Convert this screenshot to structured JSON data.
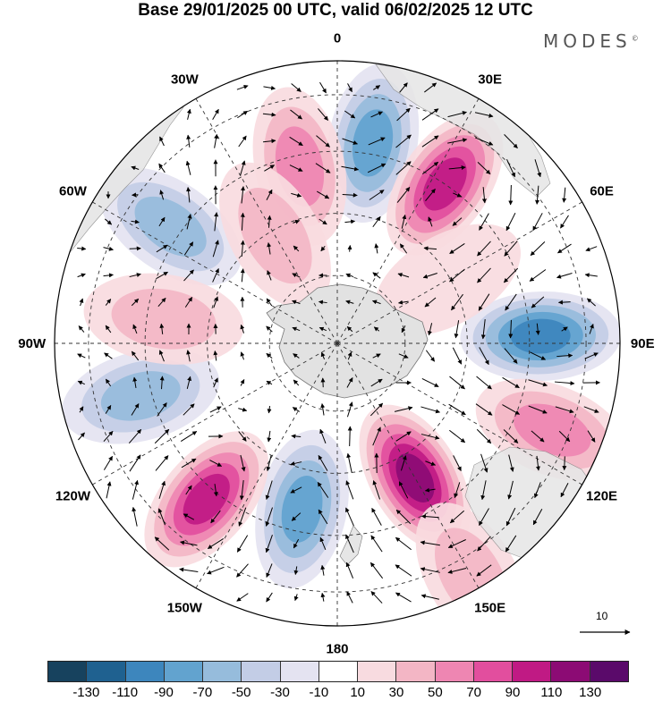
{
  "title": "Base 29/01/2025 00 UTC, valid 06/02/2025 12 UTC",
  "brand": "MODES",
  "brand_mark": "©",
  "lon_labels": [
    {
      "text": "0",
      "lon": 0
    },
    {
      "text": "30E",
      "lon": 30
    },
    {
      "text": "60E",
      "lon": 60
    },
    {
      "text": "90E",
      "lon": 90
    },
    {
      "text": "120E",
      "lon": 120
    },
    {
      "text": "150E",
      "lon": 150
    },
    {
      "text": "180",
      "lon": 180
    },
    {
      "text": "150W",
      "lon": -150
    },
    {
      "text": "120W",
      "lon": -120
    },
    {
      "text": "90W",
      "lon": -90
    },
    {
      "text": "60W",
      "lon": -60
    },
    {
      "text": "30W",
      "lon": -30
    }
  ],
  "reference_vector": "10",
  "colorbar": {
    "colors": [
      "#17425e",
      "#1f6190",
      "#3d86bd",
      "#62a3cf",
      "#96bcdc",
      "#c3cde6",
      "#e4e3f1",
      "#ffffff",
      "#f8dbe0",
      "#f3b6c5",
      "#ee86b2",
      "#e24e9e",
      "#c01a84",
      "#8c0b74",
      "#5a0a6a"
    ],
    "ticks": [
      "-130",
      "-110",
      "-90",
      "-70",
      "-50",
      "-30",
      "-10",
      "10",
      "30",
      "50",
      "70",
      "90",
      "110",
      "130"
    ]
  },
  "anomaly_centers": [
    {
      "lon": 10,
      "r": 0.72,
      "value": -80
    },
    {
      "lon": 34,
      "r": 0.68,
      "value": 100
    },
    {
      "lon": -12,
      "r": 0.64,
      "value": 45
    },
    {
      "lon": -55,
      "r": 0.72,
      "value": -55
    },
    {
      "lon": 88,
      "r": 0.72,
      "value": -90
    },
    {
      "lon": 112,
      "r": 0.82,
      "value": 45
    },
    {
      "lon": 150,
      "r": 0.55,
      "value": 120
    },
    {
      "lon": -168,
      "r": 0.6,
      "value": -75
    },
    {
      "lon": -140,
      "r": 0.72,
      "value": 100
    },
    {
      "lon": -105,
      "r": 0.72,
      "value": -45
    },
    {
      "lon": -82,
      "r": 0.62,
      "value": 25
    },
    {
      "lon": -30,
      "r": 0.44,
      "value": 25
    },
    {
      "lon": 150,
      "r": 0.95,
      "value": 35
    },
    {
      "lon": 60,
      "r": 0.45,
      "value": 20
    }
  ]
}
